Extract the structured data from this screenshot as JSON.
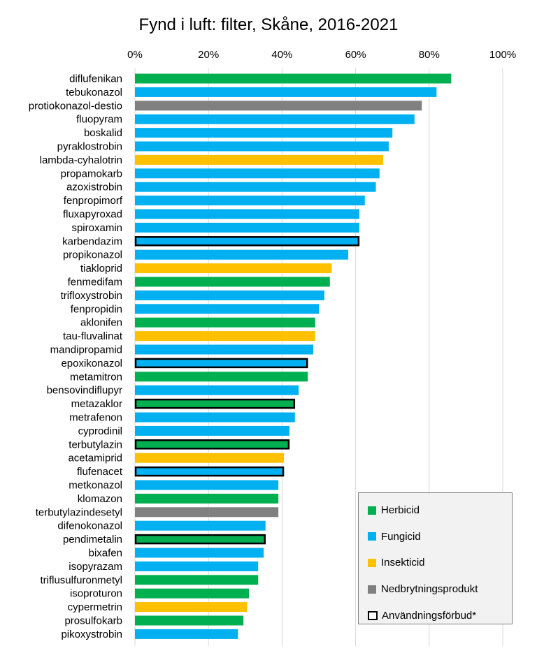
{
  "chart_data": {
    "type": "bar",
    "orientation": "horizontal",
    "title": "Fynd i luft: filter, Skåne, 2016-2021",
    "xlabel": "",
    "ylabel": "",
    "xlim": [
      0,
      1
    ],
    "x_ticks": [
      0,
      0.2,
      0.4,
      0.6,
      0.8,
      1.0
    ],
    "x_tick_labels": [
      "0%",
      "20%",
      "40%",
      "60%",
      "80%",
      "100%"
    ],
    "x_axis_position": "top",
    "grid": "vertical",
    "legend_position": "bottom-right",
    "colors": {
      "Herbicid": "#00b050",
      "Fungicid": "#00b0f0",
      "Insekticid": "#ffc000",
      "Nedbrytningsprodukt": "#808080"
    },
    "categories": [
      "diflufenikan",
      "tebukonazol",
      "protiokonazol-destio",
      "fluopyram",
      "boskalid",
      "pyraklostrobin",
      "lambda-cyhalotrin",
      "propamokarb",
      "azoxistrobin",
      "fenpropimorf",
      "fluxapyroxad",
      "spiroxamin",
      "karbendazim",
      "propikonazol",
      "tiakloprid",
      "fenmedifam",
      "trifloxystrobin",
      "fenpropidin",
      "aklonifen",
      "tau-fluvalinat",
      "mandipropamid",
      "epoxikonazol",
      "metamitron",
      "bensovindiflupyr",
      "metazaklor",
      "metrafenon",
      "cyprodinil",
      "terbutylazin",
      "acetamiprid",
      "flufenacet",
      "metkonazol",
      "klomazon",
      "terbutylazindesetyl",
      "difenokonazol",
      "pendimetalin",
      "bixafen",
      "isopyrazam",
      "triflusulfuronmetyl",
      "isoproturon",
      "cypermetrin",
      "prosulfokarb",
      "pikoxystrobin"
    ],
    "values": [
      0.86,
      0.82,
      0.78,
      0.76,
      0.7,
      0.69,
      0.675,
      0.665,
      0.655,
      0.625,
      0.61,
      0.61,
      0.61,
      0.58,
      0.535,
      0.53,
      0.515,
      0.5,
      0.49,
      0.49,
      0.485,
      0.47,
      0.47,
      0.445,
      0.435,
      0.435,
      0.42,
      0.42,
      0.405,
      0.405,
      0.39,
      0.39,
      0.39,
      0.355,
      0.355,
      0.35,
      0.335,
      0.335,
      0.31,
      0.305,
      0.295,
      0.28
    ],
    "groups": [
      "Herbicid",
      "Fungicid",
      "Nedbrytningsprodukt",
      "Fungicid",
      "Fungicid",
      "Fungicid",
      "Insekticid",
      "Fungicid",
      "Fungicid",
      "Fungicid",
      "Fungicid",
      "Fungicid",
      "Fungicid",
      "Fungicid",
      "Insekticid",
      "Herbicid",
      "Fungicid",
      "Fungicid",
      "Herbicid",
      "Insekticid",
      "Fungicid",
      "Fungicid",
      "Herbicid",
      "Fungicid",
      "Herbicid",
      "Fungicid",
      "Fungicid",
      "Herbicid",
      "Insekticid",
      "Fungicid",
      "Fungicid",
      "Herbicid",
      "Nedbrytningsprodukt",
      "Fungicid",
      "Herbicid",
      "Fungicid",
      "Fungicid",
      "Herbicid",
      "Herbicid",
      "Insekticid",
      "Herbicid",
      "Fungicid"
    ],
    "banned": [
      false,
      false,
      false,
      false,
      false,
      false,
      false,
      false,
      false,
      false,
      false,
      false,
      true,
      false,
      false,
      false,
      false,
      false,
      false,
      false,
      false,
      true,
      false,
      false,
      true,
      false,
      false,
      true,
      false,
      true,
      false,
      false,
      false,
      false,
      true,
      false,
      false,
      false,
      false,
      false,
      false,
      false
    ],
    "legend": [
      {
        "label": "Herbicid",
        "color": "#00b050",
        "type": "fill"
      },
      {
        "label": "Fungicid",
        "color": "#00b0f0",
        "type": "fill"
      },
      {
        "label": "Insekticid",
        "color": "#ffc000",
        "type": "fill"
      },
      {
        "label": "Nedbrytningsprodukt",
        "color": "#808080",
        "type": "fill"
      },
      {
        "label": "Användningsförbud*",
        "color": "#000000",
        "type": "outline"
      }
    ]
  }
}
